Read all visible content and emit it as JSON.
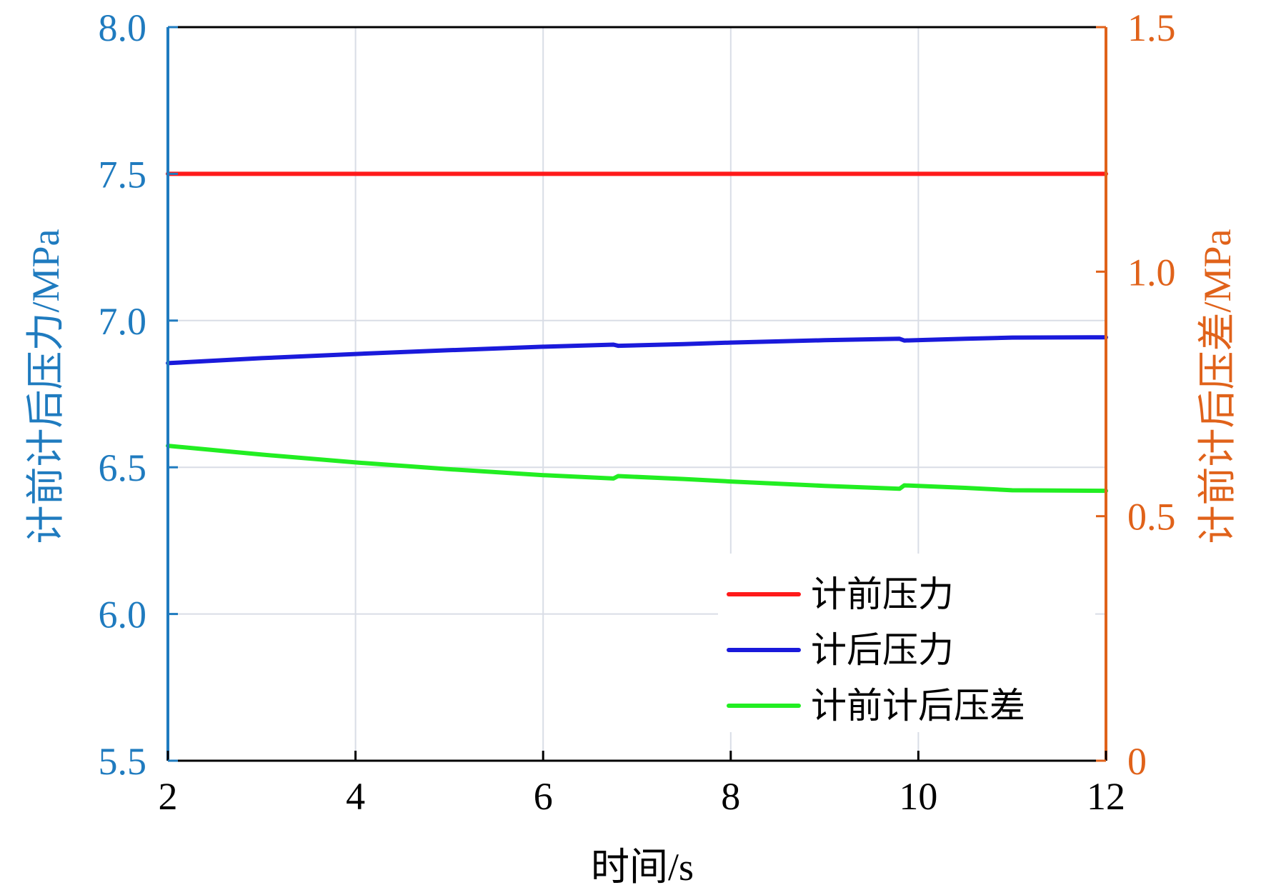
{
  "colors": {
    "left_axis": "#1f7bbf",
    "right_axis": "#e0621a",
    "grid": "#d9dde6",
    "frame": "#000000"
  },
  "chart_data": {
    "type": "line",
    "xlabel": "时间/s",
    "ylabel_left": "计前计后压力/MPa",
    "ylabel_right": "计前计后压差/MPa",
    "xlim": [
      2,
      12
    ],
    "ylim_left": [
      5.5,
      8.0
    ],
    "ylim_right": [
      0,
      1.5
    ],
    "x_ticks": [
      "2",
      "4",
      "6",
      "8",
      "10",
      "12"
    ],
    "y_left_ticks": [
      "5.5",
      "6.0",
      "6.5",
      "7.0",
      "7.5",
      "8.0"
    ],
    "y_right_ticks": [
      "0",
      "0.5",
      "1.0",
      "1.5"
    ],
    "grid": true,
    "legend_position": "bottom-right",
    "series": [
      {
        "name": "计前压力",
        "axis": "left",
        "color": "#ff1a1a",
        "x": [
          2,
          12
        ],
        "y": [
          7.5,
          7.5
        ]
      },
      {
        "name": "计后压力",
        "axis": "left",
        "color": "#1a1adb",
        "x": [
          2,
          3,
          4,
          5,
          6,
          6.75,
          6.8,
          7.5,
          8,
          9,
          9.8,
          9.85,
          10.5,
          11,
          12
        ],
        "y": [
          6.855,
          6.872,
          6.886,
          6.899,
          6.911,
          6.918,
          6.914,
          6.92,
          6.925,
          6.933,
          6.938,
          6.932,
          6.938,
          6.942,
          6.943
        ]
      },
      {
        "name": "计前计后压差",
        "axis": "right",
        "color": "#22ee22",
        "x": [
          2,
          3,
          4,
          5,
          6,
          6.75,
          6.8,
          7.5,
          8,
          9,
          9.8,
          9.85,
          10.5,
          11,
          12
        ],
        "y": [
          0.644,
          0.626,
          0.61,
          0.596,
          0.584,
          0.577,
          0.582,
          0.576,
          0.571,
          0.562,
          0.556,
          0.563,
          0.558,
          0.553,
          0.552
        ]
      }
    ]
  }
}
